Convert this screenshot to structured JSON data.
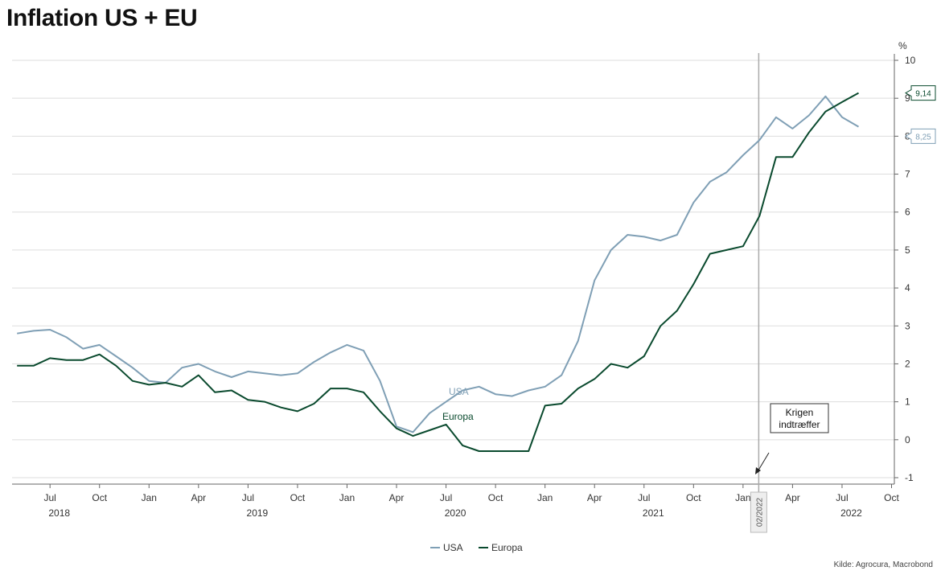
{
  "title": "Inflation US + EU",
  "source": "Kilde: Agrocura, Macrobond",
  "colors": {
    "usa": "#7f9fb5",
    "europa": "#0a4a2e",
    "grid": "#dddddd",
    "axis": "#666666",
    "marker": "#aaaaaa"
  },
  "chart_data": {
    "type": "line",
    "title": "Inflation US + EU",
    "ylabel": "%",
    "ylim": [
      -1,
      10
    ],
    "yticks": [
      -1,
      0,
      1,
      2,
      3,
      4,
      5,
      6,
      7,
      8,
      9,
      10
    ],
    "xlim": [
      "2018-04",
      "2022-10"
    ],
    "month_ticks": [
      {
        "x": "2018-07",
        "label": "Jul"
      },
      {
        "x": "2018-10",
        "label": "Oct"
      },
      {
        "x": "2019-01",
        "label": "Jan"
      },
      {
        "x": "2019-04",
        "label": "Apr"
      },
      {
        "x": "2019-07",
        "label": "Jul"
      },
      {
        "x": "2019-10",
        "label": "Oct"
      },
      {
        "x": "2020-01",
        "label": "Jan"
      },
      {
        "x": "2020-04",
        "label": "Apr"
      },
      {
        "x": "2020-07",
        "label": "Jul"
      },
      {
        "x": "2020-10",
        "label": "Oct"
      },
      {
        "x": "2021-01",
        "label": "Jan"
      },
      {
        "x": "2021-04",
        "label": "Apr"
      },
      {
        "x": "2021-07",
        "label": "Jul"
      },
      {
        "x": "2021-10",
        "label": "Oct"
      },
      {
        "x": "2022-01",
        "label": "Jan"
      },
      {
        "x": "2022-04",
        "label": "Apr"
      },
      {
        "x": "2022-07",
        "label": "Jul"
      },
      {
        "x": "2022-10",
        "label": "Oct"
      }
    ],
    "year_labels": [
      {
        "x": "2018-08",
        "label": "2018"
      },
      {
        "x": "2019-08",
        "label": "2019"
      },
      {
        "x": "2020-08",
        "label": "2020"
      },
      {
        "x": "2021-08",
        "label": "2021"
      },
      {
        "x": "2022-08",
        "label": "2022"
      }
    ],
    "x": [
      "2018-05",
      "2018-06",
      "2018-07",
      "2018-08",
      "2018-09",
      "2018-10",
      "2018-11",
      "2018-12",
      "2019-01",
      "2019-02",
      "2019-03",
      "2019-04",
      "2019-05",
      "2019-06",
      "2019-07",
      "2019-08",
      "2019-09",
      "2019-10",
      "2019-11",
      "2019-12",
      "2020-01",
      "2020-02",
      "2020-03",
      "2020-04",
      "2020-05",
      "2020-06",
      "2020-07",
      "2020-08",
      "2020-09",
      "2020-10",
      "2020-11",
      "2020-12",
      "2021-01",
      "2021-02",
      "2021-03",
      "2021-04",
      "2021-05",
      "2021-06",
      "2021-07",
      "2021-08",
      "2021-09",
      "2021-10",
      "2021-11",
      "2021-12",
      "2022-01",
      "2022-02",
      "2022-03",
      "2022-04",
      "2022-05",
      "2022-06",
      "2022-07",
      "2022-08"
    ],
    "series": [
      {
        "name": "USA",
        "key": "usa",
        "values": [
          2.8,
          2.87,
          2.9,
          2.7,
          2.4,
          2.5,
          2.2,
          1.9,
          1.55,
          1.5,
          1.9,
          2.0,
          1.8,
          1.65,
          1.8,
          1.75,
          1.7,
          1.75,
          2.05,
          2.3,
          2.5,
          2.35,
          1.55,
          0.35,
          0.2,
          0.7,
          1.0,
          1.3,
          1.4,
          1.2,
          1.15,
          1.3,
          1.4,
          1.7,
          2.6,
          4.2,
          5.0,
          5.4,
          5.35,
          5.25,
          5.4,
          6.25,
          6.8,
          7.05,
          7.5,
          7.9,
          8.5,
          8.2,
          8.55,
          9.05,
          8.5,
          8.25
        ]
      },
      {
        "name": "Europa",
        "key": "europa",
        "values": [
          1.95,
          1.95,
          2.15,
          2.1,
          2.1,
          2.25,
          1.95,
          1.55,
          1.45,
          1.5,
          1.4,
          1.7,
          1.25,
          1.3,
          1.05,
          1.0,
          0.85,
          0.75,
          0.95,
          1.35,
          1.35,
          1.25,
          0.75,
          0.3,
          0.1,
          0.25,
          0.4,
          -0.15,
          -0.3,
          -0.3,
          -0.3,
          -0.3,
          0.9,
          0.95,
          1.35,
          1.6,
          2.0,
          1.9,
          2.2,
          3.0,
          3.4,
          4.1,
          4.9,
          5.0,
          5.1,
          5.9,
          7.45,
          7.45,
          8.1,
          8.65,
          8.9,
          9.14
        ]
      }
    ],
    "end_labels": {
      "usa": "8,25",
      "europa": "9,14"
    },
    "inline_labels": {
      "usa": "USA",
      "europa": "Europa"
    },
    "event": {
      "x": "2022-02",
      "date_label": "02/2022",
      "annotation_lines": [
        "Krigen",
        "indtræffer"
      ]
    },
    "legend": {
      "position": "bottom-center",
      "items": [
        "USA",
        "Europa"
      ]
    },
    "grid": true
  }
}
